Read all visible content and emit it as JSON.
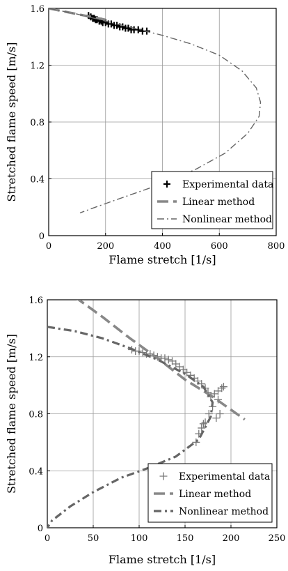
{
  "chart_data": [
    {
      "type": "line",
      "xlabel": "Flame stretch [1/s]",
      "ylabel": "Stretched flame speed [m/s]",
      "xlim": [
        0,
        800
      ],
      "ylim": [
        0,
        1.6
      ],
      "xticks": [
        0,
        200,
        400,
        600,
        800
      ],
      "yticks": [
        0,
        0.4,
        0.8,
        1.2,
        1.6
      ],
      "xtick_labels": [
        "0",
        "200",
        "400",
        "600",
        "800"
      ],
      "ytick_labels": [
        "0",
        "0.4",
        "0.8",
        "1.2",
        "1.6"
      ],
      "grid": true,
      "legend": {
        "position": "bottom-right",
        "entries": [
          "Experimental data",
          "Linear method",
          "Nonlinear method"
        ]
      },
      "series": [
        {
          "name": "Experimental data",
          "style": "marker-plus",
          "x": [
            140,
            148,
            155,
            160,
            165,
            170,
            178,
            185,
            190,
            200,
            210,
            220,
            230,
            240,
            250,
            260,
            270,
            280,
            290,
            300,
            315,
            330,
            345
          ],
          "y": [
            1.55,
            1.54,
            1.53,
            1.53,
            1.52,
            1.52,
            1.51,
            1.51,
            1.5,
            1.5,
            1.49,
            1.49,
            1.48,
            1.48,
            1.47,
            1.47,
            1.46,
            1.46,
            1.45,
            1.45,
            1.45,
            1.44,
            1.44
          ]
        },
        {
          "name": "Linear method",
          "style": "long-dash",
          "x": [
            0,
            50,
            100,
            150,
            200
          ],
          "y": [
            1.6,
            1.58,
            1.56,
            1.54,
            1.52
          ]
        },
        {
          "name": "Nonlinear method",
          "style": "dash-dot",
          "x": [
            0,
            100,
            200,
            300,
            400,
            500,
            600,
            680,
            730,
            745,
            740,
            700,
            620,
            520,
            420,
            320,
            220,
            150,
            110
          ],
          "y": [
            1.6,
            1.56,
            1.51,
            1.46,
            1.41,
            1.35,
            1.27,
            1.16,
            1.04,
            0.94,
            0.84,
            0.72,
            0.58,
            0.47,
            0.38,
            0.31,
            0.24,
            0.19,
            0.16
          ]
        }
      ]
    },
    {
      "type": "line",
      "xlabel": "Flame stretch [1/s]",
      "ylabel": "Stretched flame speed [m/s]",
      "xlim": [
        0,
        250
      ],
      "ylim": [
        0,
        1.6
      ],
      "xticks": [
        0,
        50,
        100,
        150,
        200,
        250
      ],
      "yticks": [
        0,
        0.4,
        0.8,
        1.2,
        1.6
      ],
      "xtick_labels": [
        "0",
        "50",
        "100",
        "150",
        "200",
        "250"
      ],
      "ytick_labels": [
        "0",
        "0.4",
        "0.8",
        "1.2",
        "1.6"
      ],
      "grid": true,
      "legend": {
        "position": "bottom-right",
        "entries": [
          "Experimental data",
          "Linear method",
          "Nonlinear method"
        ]
      },
      "series": [
        {
          "name": "Experimental data",
          "style": "marker-plus",
          "x": [
            92,
            96,
            100,
            104,
            108,
            112,
            116,
            120,
            124,
            128,
            132,
            136,
            140,
            144,
            148,
            152,
            156,
            160,
            164,
            168,
            172,
            175,
            178,
            182,
            186,
            190,
            192,
            186,
            180,
            176,
            172,
            168,
            165,
            162,
            170,
            184,
            188
          ],
          "y": [
            1.25,
            1.24,
            1.24,
            1.23,
            1.22,
            1.22,
            1.21,
            1.2,
            1.19,
            1.19,
            1.18,
            1.17,
            1.15,
            1.13,
            1.11,
            1.09,
            1.07,
            1.05,
            1.03,
            1.01,
            0.98,
            0.95,
            0.92,
            0.94,
            0.96,
            0.98,
            0.99,
            0.9,
            0.85,
            0.8,
            0.74,
            0.7,
            0.66,
            0.6,
            0.73,
            0.77,
            0.8
          ]
        },
        {
          "name": "Linear method",
          "style": "long-dash",
          "x": [
            30,
            60,
            90,
            120,
            150,
            180,
            215
          ],
          "y": [
            1.62,
            1.48,
            1.33,
            1.19,
            1.04,
            0.92,
            0.76
          ]
        },
        {
          "name": "Nonlinear method",
          "style": "dash-dot",
          "x": [
            0,
            30,
            60,
            90,
            120,
            150,
            170,
            180,
            178,
            165,
            140,
            110,
            80,
            50,
            25,
            5,
            0
          ],
          "y": [
            1.41,
            1.38,
            1.33,
            1.26,
            1.18,
            1.08,
            0.99,
            0.88,
            0.78,
            0.62,
            0.5,
            0.42,
            0.35,
            0.25,
            0.15,
            0.05,
            0.0
          ]
        }
      ]
    }
  ]
}
